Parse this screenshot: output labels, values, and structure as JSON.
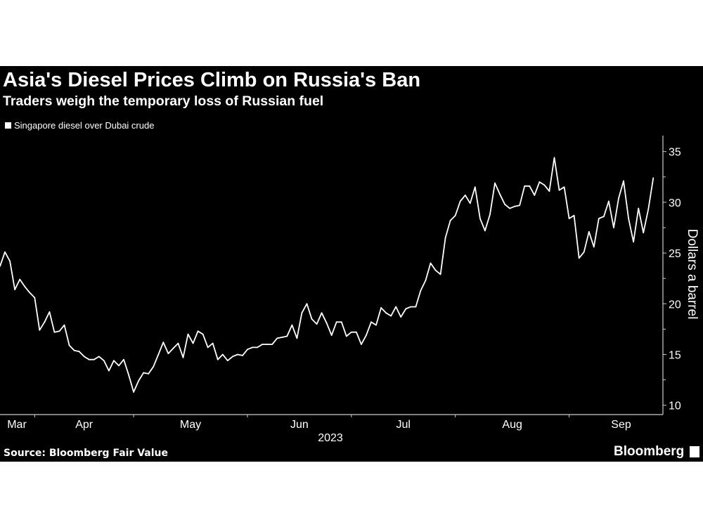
{
  "header": {
    "title": "Asia's Diesel Prices Climb on Russia's Ban",
    "subtitle": "Traders weigh the temporary loss of Russian fuel"
  },
  "footer": {
    "source": "Source: Bloomberg Fair Value",
    "brand": "Bloomberg"
  },
  "colors": {
    "background": "#000000",
    "line": "#ffffff",
    "text": "#ffffff"
  },
  "chart_data": {
    "type": "line",
    "title": "Asia's Diesel Prices Climb on Russia's Ban",
    "subtitle": "Traders weigh the temporary loss of Russian fuel",
    "legend": {
      "position": "top-left"
    },
    "xlabel": "2023",
    "ylabel": "Dollars a barrel",
    "ylim": [
      9,
      36
    ],
    "y_ticks": [
      10,
      15,
      20,
      25,
      30,
      35
    ],
    "y_axis_side": "right",
    "grid": false,
    "x_month_labels": [
      "Mar",
      "Apr",
      "May",
      "Jun",
      "Jul",
      "Aug",
      "Sep"
    ],
    "x_month_start_index": [
      0,
      7,
      27,
      50,
      71,
      92,
      115
    ],
    "series": [
      {
        "name": "Singapore diesel over Dubai crude",
        "color": "#ffffff",
        "values": [
          23.7,
          25.1,
          24.2,
          21.4,
          22.4,
          21.7,
          21.1,
          20.6,
          17.4,
          18.2,
          19.2,
          17.2,
          17.3,
          17.9,
          15.9,
          15.4,
          15.3,
          14.8,
          14.5,
          14.5,
          14.8,
          14.4,
          13.4,
          14.4,
          13.9,
          14.5,
          13.0,
          11.3,
          12.4,
          13.2,
          13.1,
          13.8,
          15.0,
          16.2,
          15.1,
          15.6,
          16.1,
          14.7,
          17.0,
          16.1,
          17.3,
          17.0,
          15.7,
          16.1,
          14.5,
          15.0,
          14.4,
          14.8,
          15.0,
          14.9,
          15.5,
          15.7,
          15.7,
          16.0,
          16.0,
          16.0,
          16.6,
          16.7,
          16.8,
          17.9,
          16.6,
          19.1,
          20.0,
          18.5,
          18.0,
          19.1,
          18.1,
          16.9,
          18.2,
          18.2,
          16.8,
          17.2,
          17.2,
          16.0,
          16.9,
          18.2,
          17.9,
          19.6,
          19.1,
          18.8,
          19.7,
          18.7,
          19.5,
          19.7,
          19.7,
          21.3,
          22.3,
          24.0,
          23.3,
          22.9,
          26.5,
          28.2,
          28.7,
          30.1,
          30.7,
          29.9,
          31.5,
          28.4,
          27.2,
          28.8,
          31.9,
          30.8,
          29.8,
          29.4,
          29.6,
          29.7,
          31.6,
          31.6,
          30.7,
          32.0,
          31.7,
          31.1,
          34.4,
          31.2,
          31.5,
          28.4,
          28.7,
          24.5,
          25.1,
          27.1,
          25.6,
          28.4,
          28.6,
          30.1,
          27.5,
          30.4,
          32.1,
          28.4,
          26.1,
          29.4,
          27.0,
          29.3,
          32.4
        ]
      }
    ]
  }
}
